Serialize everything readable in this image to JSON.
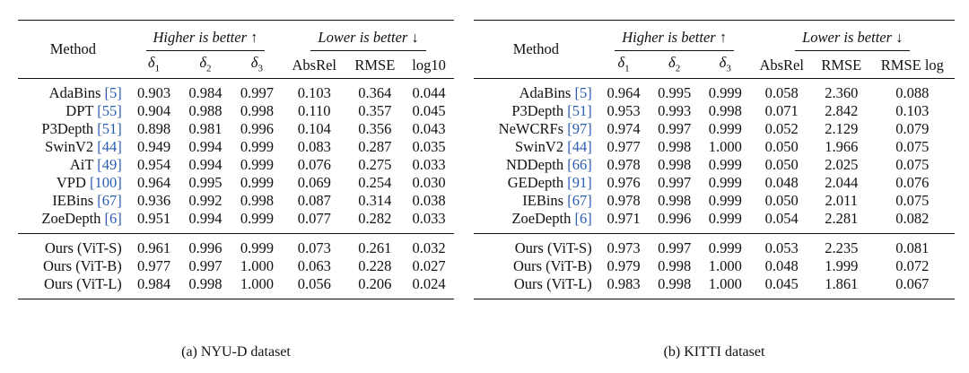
{
  "nyu": {
    "headers": {
      "method": "Method",
      "higher": "Higher is better ↑",
      "lower": "Lower is better ↓",
      "d1": "δ",
      "d1_sub": "1",
      "d2": "δ",
      "d2_sub": "2",
      "d3": "δ",
      "d3_sub": "3",
      "absrel": "AbsRel",
      "rmse": "RMSE",
      "log": "log10"
    },
    "rows": [
      {
        "name": "AdaBins",
        "cite": "[5]",
        "v": [
          "0.903",
          "0.984",
          "0.997",
          "0.103",
          "0.364",
          "0.044"
        ]
      },
      {
        "name": "DPT",
        "cite": "[55]",
        "v": [
          "0.904",
          "0.988",
          "0.998",
          "0.110",
          "0.357",
          "0.045"
        ]
      },
      {
        "name": "P3Depth",
        "cite": "[51]",
        "v": [
          "0.898",
          "0.981",
          "0.996",
          "0.104",
          "0.356",
          "0.043"
        ]
      },
      {
        "name": "SwinV2",
        "cite": "[44]",
        "v": [
          "0.949",
          "0.994",
          "0.999",
          "0.083",
          "0.287",
          "0.035"
        ]
      },
      {
        "name": "AiT",
        "cite": "[49]",
        "v": [
          "0.954",
          "0.994",
          "0.999",
          "0.076",
          "0.275",
          "0.033"
        ]
      },
      {
        "name": "VPD",
        "cite": "[100]",
        "v": [
          "0.964",
          "0.995",
          "0.999",
          "0.069",
          "0.254",
          "0.030"
        ]
      },
      {
        "name": "IEBins",
        "cite": "[67]",
        "v": [
          "0.936",
          "0.992",
          "0.998",
          "0.087",
          "0.314",
          "0.038"
        ]
      },
      {
        "name": "ZoeDepth",
        "cite": "[6]",
        "v": [
          "0.951",
          "0.994",
          "0.999",
          "0.077",
          "0.282",
          "0.033"
        ]
      }
    ],
    "ours": [
      {
        "name": "Ours (ViT-S)",
        "v": [
          "0.961",
          "0.996",
          "0.999",
          "0.073",
          "0.261",
          "0.032"
        ]
      },
      {
        "name": "Ours (ViT-B)",
        "v": [
          "0.977",
          "0.997",
          "1.000",
          "0.063",
          "0.228",
          "0.027"
        ]
      },
      {
        "name": "Ours (ViT-L)",
        "v": [
          "0.984",
          "0.998",
          "1.000",
          "0.056",
          "0.206",
          "0.024"
        ]
      }
    ],
    "caption": "(a) NYU-D dataset"
  },
  "kitti": {
    "headers": {
      "method": "Method",
      "higher": "Higher is better ↑",
      "lower": "Lower is better ↓",
      "d1": "δ",
      "d1_sub": "1",
      "d2": "δ",
      "d2_sub": "2",
      "d3": "δ",
      "d3_sub": "3",
      "absrel": "AbsRel",
      "rmse": "RMSE",
      "log": "RMSE log"
    },
    "rows": [
      {
        "name": "AdaBins",
        "cite": "[5]",
        "v": [
          "0.964",
          "0.995",
          "0.999",
          "0.058",
          "2.360",
          "0.088"
        ]
      },
      {
        "name": "P3Depth",
        "cite": "[51]",
        "v": [
          "0.953",
          "0.993",
          "0.998",
          "0.071",
          "2.842",
          "0.103"
        ]
      },
      {
        "name": "NeWCRFs",
        "cite": "[97]",
        "v": [
          "0.974",
          "0.997",
          "0.999",
          "0.052",
          "2.129",
          "0.079"
        ]
      },
      {
        "name": "SwinV2",
        "cite": "[44]",
        "v": [
          "0.977",
          "0.998",
          "1.000",
          "0.050",
          "1.966",
          "0.075"
        ]
      },
      {
        "name": "NDDepth",
        "cite": "[66]",
        "v": [
          "0.978",
          "0.998",
          "0.999",
          "0.050",
          "2.025",
          "0.075"
        ]
      },
      {
        "name": "GEDepth",
        "cite": "[91]",
        "v": [
          "0.976",
          "0.997",
          "0.999",
          "0.048",
          "2.044",
          "0.076"
        ]
      },
      {
        "name": "IEBins",
        "cite": "[67]",
        "v": [
          "0.978",
          "0.998",
          "0.999",
          "0.050",
          "2.011",
          "0.075"
        ]
      },
      {
        "name": "ZoeDepth",
        "cite": "[6]",
        "v": [
          "0.971",
          "0.996",
          "0.999",
          "0.054",
          "2.281",
          "0.082"
        ]
      }
    ],
    "ours": [
      {
        "name": "Ours (ViT-S)",
        "v": [
          "0.973",
          "0.997",
          "0.999",
          "0.053",
          "2.235",
          "0.081"
        ]
      },
      {
        "name": "Ours (ViT-B)",
        "v": [
          "0.979",
          "0.998",
          "1.000",
          "0.048",
          "1.999",
          "0.072"
        ]
      },
      {
        "name": "Ours (ViT-L)",
        "v": [
          "0.983",
          "0.998",
          "1.000",
          "0.045",
          "1.861",
          "0.067"
        ]
      }
    ],
    "caption": "(b) KITTI dataset"
  },
  "colors": {
    "citation": "#2a5db0",
    "text": "#111111"
  }
}
